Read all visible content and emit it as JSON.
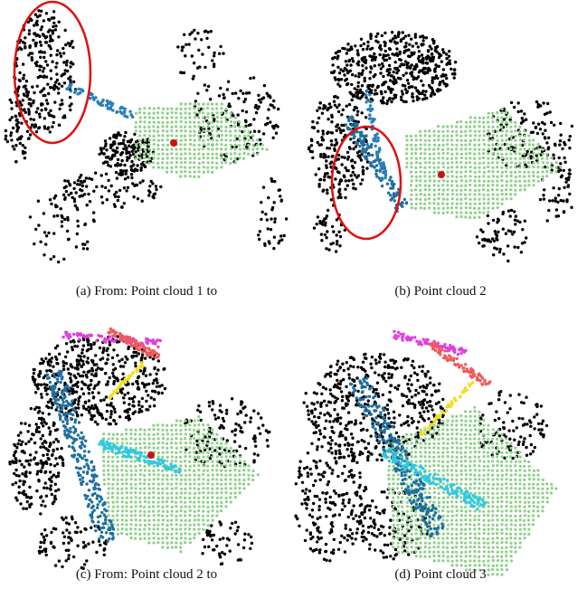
{
  "figure": {
    "panels": [
      {
        "caption": "(a) From: Point cloud 1 to"
      },
      {
        "caption": "(b) Point cloud 2"
      },
      {
        "caption": "(c) From: Point cloud 2 to"
      },
      {
        "caption": "(d) Point cloud 3"
      }
    ]
  }
}
